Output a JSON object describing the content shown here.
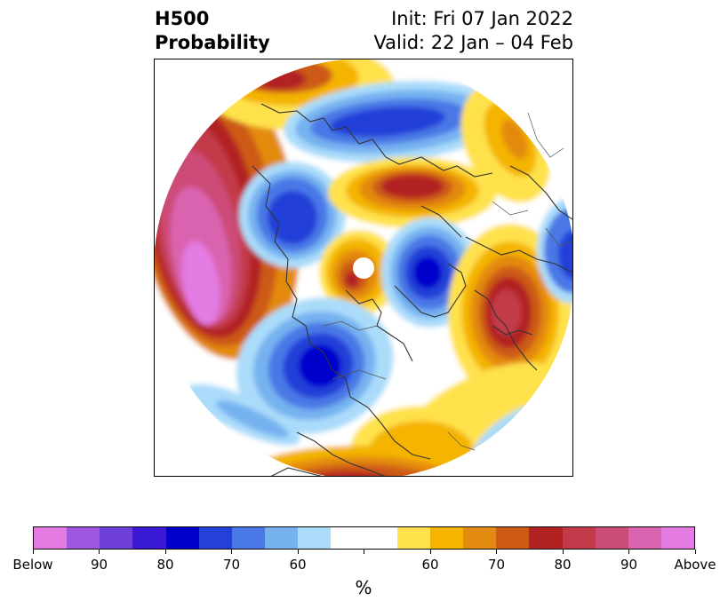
{
  "header": {
    "left_line1": "H500",
    "left_line2": "Probability",
    "right_line1": "Init: Fri 07 Jan 2022",
    "right_line2": "Valid: 22 Jan – 04 Feb"
  },
  "colorbar": {
    "colors": [
      "#e37be3",
      "#9e57e1",
      "#6e3fd9",
      "#3a1ad4",
      "#0000cc",
      "#2340d8",
      "#4a78e6",
      "#76b2f0",
      "#aadcfa",
      "#ffffff",
      "#ffffff",
      "#ffe24c",
      "#f4b400",
      "#e38a10",
      "#cc5a14",
      "#b22222",
      "#c23a4a",
      "#cc4c78",
      "#da64b0",
      "#e37be3"
    ],
    "tick_labels": [
      "Below",
      "90",
      "80",
      "70",
      "60",
      "",
      "60",
      "70",
      "80",
      "90",
      "Above"
    ],
    "unit": "%"
  },
  "colors": {
    "blue_dark": "#0000cc",
    "blue": "#2340d8",
    "blue_mid": "#4a78e6",
    "blue_light": "#76b2f0",
    "blue_pale": "#aadcfa",
    "yellow": "#ffe24c",
    "gold": "#f4b400",
    "orange": "#e38a10",
    "red_orange": "#cc5a14",
    "red": "#b22222",
    "crimson": "#c23a4a",
    "rose": "#cc4c78",
    "pink": "#da64b0",
    "magenta": "#e37be3",
    "coast": "#333333"
  }
}
